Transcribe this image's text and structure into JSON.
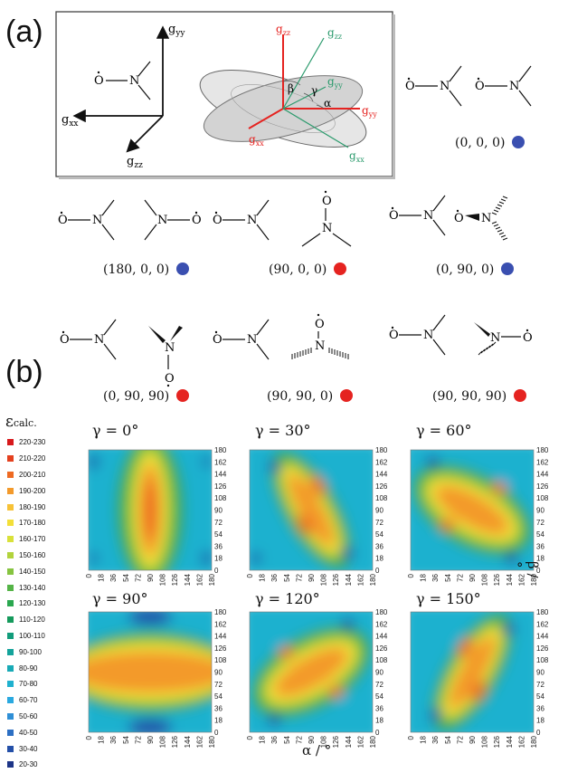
{
  "panel_a": {
    "label": "(a)",
    "inset": {
      "axis_gyy": "g",
      "axis_gyy_sub": "yy",
      "axis_gxx": "g",
      "axis_gxx_sub": "xx",
      "axis_gzz": "g",
      "axis_gzz_sub": "zz",
      "red_gzz": "g",
      "red_gzz_sub": "zz",
      "red_gyy": "g",
      "red_gyy_sub": "yy",
      "red_gxx": "g",
      "red_gxx_sub": "xx",
      "green_gzz": "g",
      "green_gzz_sub": "zz",
      "green_gyy": "g",
      "green_gyy_sub": "yy",
      "green_gxx": "g",
      "green_gxx_sub": "xx",
      "beta": "β",
      "gamma": "γ",
      "alpha": "α"
    },
    "atom_O": "O",
    "atom_N": "N",
    "orientations": [
      {
        "label": "(0, 0, 0)",
        "dot": "blue"
      },
      {
        "label": "(180, 0, 0)",
        "dot": "blue"
      },
      {
        "label": "(90, 0, 0)",
        "dot": "red"
      },
      {
        "label": "(0, 90, 0)",
        "dot": "blue"
      },
      {
        "label": "(0, 90, 90)",
        "dot": "red"
      },
      {
        "label": "(90, 90, 0)",
        "dot": "red"
      },
      {
        "label": "(90, 90, 90)",
        "dot": "red"
      }
    ],
    "colors": {
      "blue": "#3a4fb0",
      "red": "#e52320"
    }
  },
  "panel_b": {
    "label": "(b)",
    "legend_title": "ε",
    "legend_title_sub": "calc.",
    "legend": [
      {
        "label": "220-230",
        "color": "#d7191c"
      },
      {
        "label": "210-220",
        "color": "#e4401e"
      },
      {
        "label": "200-210",
        "color": "#ee6a22"
      },
      {
        "label": "190-200",
        "color": "#f39a2b"
      },
      {
        "label": "180-190",
        "color": "#f7c237"
      },
      {
        "label": "170-180",
        "color": "#f3df38"
      },
      {
        "label": "160-170",
        "color": "#d9e13a"
      },
      {
        "label": "150-160",
        "color": "#b2d33c"
      },
      {
        "label": "140-150",
        "color": "#86c440"
      },
      {
        "label": "130-140",
        "color": "#55b447"
      },
      {
        "label": "120-130",
        "color": "#2aa74f"
      },
      {
        "label": "110-120",
        "color": "#159a5c"
      },
      {
        "label": "100-110",
        "color": "#129c7b"
      },
      {
        "label": "90-100",
        "color": "#14a39b"
      },
      {
        "label": "80-90",
        "color": "#18aab6"
      },
      {
        "label": "70-80",
        "color": "#1fb1cf"
      },
      {
        "label": "60-70",
        "color": "#2aa9e0"
      },
      {
        "label": "50-60",
        "color": "#2f8fd6"
      },
      {
        "label": "40-50",
        "color": "#2c6fc3"
      },
      {
        "label": "30-40",
        "color": "#2450a8"
      },
      {
        "label": "20-30",
        "color": "#1d3587"
      }
    ],
    "x_label": "α / °",
    "y_label": "β / °",
    "ticks": [
      "0",
      "18",
      "36",
      "54",
      "72",
      "90",
      "108",
      "126",
      "144",
      "162",
      "180"
    ],
    "plots": [
      {
        "title": "γ = 0°"
      },
      {
        "title": "γ = 30°"
      },
      {
        "title": "γ = 60°"
      },
      {
        "title": "γ = 90°"
      },
      {
        "title": "γ = 120°"
      },
      {
        "title": "γ = 150°"
      }
    ]
  }
}
